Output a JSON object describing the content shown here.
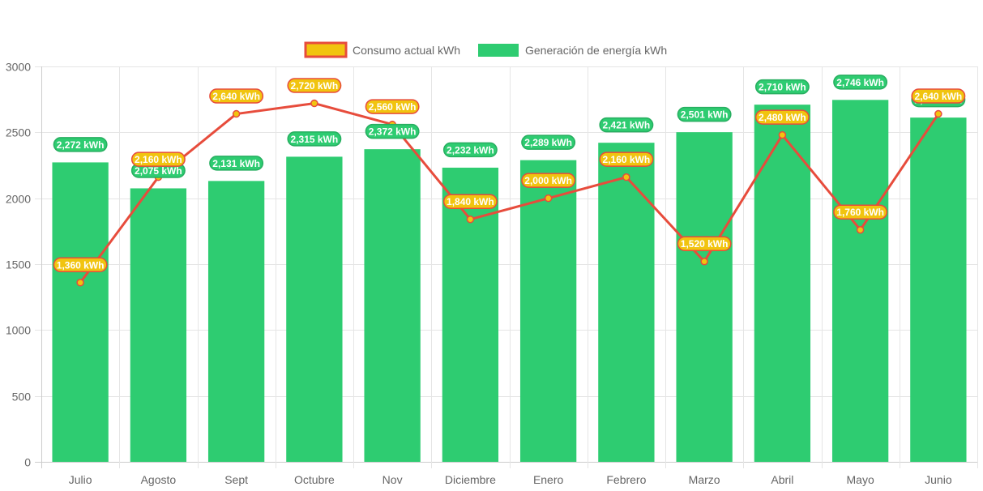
{
  "chart_data": {
    "type": "bar",
    "title": "",
    "xlabel": "",
    "ylabel": "",
    "ylim": [
      0,
      3000
    ],
    "yticks": [
      0,
      500,
      1000,
      1500,
      2000,
      2500,
      3000
    ],
    "grid": true,
    "legend_position": "top-center",
    "categories": [
      "Julio",
      "Agosto",
      "Sept",
      "Octubre",
      "Nov",
      "Diciembre",
      "Enero",
      "Febrero",
      "Marzo",
      "Abril",
      "Mayo",
      "Junio"
    ],
    "series": [
      {
        "name": "Consumo actual kWh",
        "type": "line",
        "color": "#e74c3c",
        "fill": "#f1c40f",
        "values": [
          1360,
          2160,
          2640,
          2720,
          2560,
          1840,
          2000,
          2160,
          1520,
          2480,
          1760,
          2640
        ],
        "labels": [
          "1,360 kWh",
          "2,160 kWh",
          "2,640 kWh",
          "2,720 kWh",
          "2,560 kWh",
          "1,840 kWh",
          "2,000 kWh",
          "2,160 kWh",
          "1,520 kWh",
          "2,480 kWh",
          "1,760 kWh",
          "2,640 kWh"
        ]
      },
      {
        "name": "Generación de energía kWh",
        "type": "bar",
        "color": "#2ecc71",
        "values": [
          2272,
          2075,
          2131,
          2315,
          2372,
          2232,
          2289,
          2421,
          2501,
          2710,
          2746,
          2612
        ],
        "labels": [
          "2,272 kWh",
          "2,075 kWh",
          "2,131 kWh",
          "2,315 kWh",
          "2,372 kWh",
          "2,232 kWh",
          "2,289 kWh",
          "2,421 kWh",
          "2,501 kWh",
          "2,710 kWh",
          "2,746 kWh",
          "2,612 kWh"
        ]
      }
    ]
  }
}
